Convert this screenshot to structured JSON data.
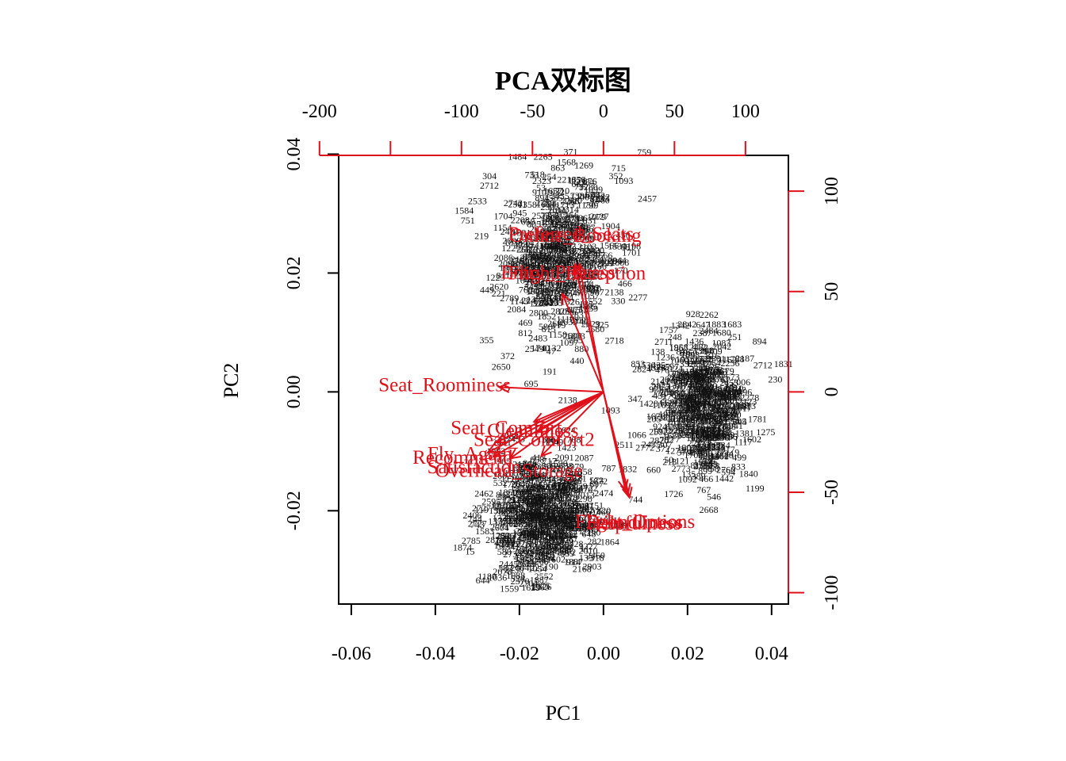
{
  "chart_data": {
    "type": "scatter",
    "subtype": "pca-biplot",
    "title": "PCA双标图",
    "xlabel": "PC1",
    "ylabel": "PC2",
    "xlim": [
      -0.063,
      0.044
    ],
    "ylim": [
      -0.0357,
      0.0398
    ],
    "x_ticks": [
      "-0.06",
      "-0.04",
      "-0.02",
      "0.00",
      "0.02",
      "0.04"
    ],
    "x_tick_values": [
      -0.06,
      -0.04,
      -0.02,
      0.0,
      0.02,
      0.04
    ],
    "y_ticks": [
      "-0.02",
      "0.00",
      "0.02",
      "0.04"
    ],
    "y_tick_values": [
      -0.02,
      0.0,
      0.02,
      0.04
    ],
    "top_ticks": [
      "-200",
      "-100",
      "-50",
      "0",
      "50",
      "100"
    ],
    "top_tick_values": [
      -200,
      -150,
      -100,
      -50,
      0,
      50,
      100
    ],
    "top_tick_labeled": [
      -200,
      -100,
      -50,
      0,
      50,
      100
    ],
    "right_ticks": [
      "-100",
      "-50",
      "0",
      "50",
      "100"
    ],
    "right_tick_values": [
      -100,
      -50,
      0,
      50,
      100
    ],
    "loading_scale": 2960,
    "arrow_color": "#e0101a",
    "point_color": "#000000",
    "clusters": [
      {
        "cx": -0.0105,
        "cy": 0.0225,
        "sx": 0.0065,
        "sy": 0.0065,
        "n": 380
      },
      {
        "cx": 0.0235,
        "cy": -0.003,
        "sx": 0.0055,
        "sy": 0.0058,
        "n": 420
      },
      {
        "cx": -0.0145,
        "cy": -0.0215,
        "sx": 0.0065,
        "sy": 0.005,
        "n": 460
      }
    ],
    "labeled_points": [
      {
        "label": "371",
        "x": -0.0078,
        "y": 0.0399
      },
      {
        "label": "759",
        "x": 0.0097,
        "y": 0.0398
      },
      {
        "label": "715",
        "x": 0.0036,
        "y": 0.0371
      },
      {
        "label": "751",
        "x": -0.0323,
        "y": 0.0283
      },
      {
        "label": "355",
        "x": -0.0278,
        "y": 0.0082
      },
      {
        "label": "372",
        "x": -0.0228,
        "y": 0.0055
      },
      {
        "label": "47",
        "x": -0.0125,
        "y": 0.0063
      },
      {
        "label": "191",
        "x": -0.0128,
        "y": 0.0029
      },
      {
        "label": "440",
        "x": -0.0063,
        "y": 0.0047
      },
      {
        "label": "1726",
        "x": 0.0167,
        "y": -0.0177
      },
      {
        "label": "1840",
        "x": 0.0345,
        "y": -0.0143
      },
      {
        "label": "1275",
        "x": 0.0386,
        "y": -0.0073
      },
      {
        "label": "2168",
        "x": -0.0051,
        "y": -0.0303
      },
      {
        "label": "2326",
        "x": -0.0146,
        "y": -0.0333
      },
      {
        "label": "2903",
        "x": -0.0027,
        "y": -0.0299
      },
      {
        "label": "466",
        "x": 0.0051,
        "y": 0.0177
      },
      {
        "label": "330",
        "x": 0.0035,
        "y": 0.0148
      },
      {
        "label": "325",
        "x": -0.0004,
        "y": 0.0108
      },
      {
        "label": "2138",
        "x": -0.0085,
        "y": -0.0019
      },
      {
        "label": "1093",
        "x": 0.0017,
        "y": -0.0036
      }
    ],
    "arrows": [
      {
        "name": "Preferred_Seats",
        "x": -0.0068,
        "y": 0.0215,
        "lx": -0.0077,
        "ly": 0.0263
      },
      {
        "name": "Online_Booking",
        "x": -0.0065,
        "y": 0.0205,
        "lx": -0.0067,
        "ly": 0.026
      },
      {
        "name": "Flight_Reception",
        "x": -0.0058,
        "y": 0.0215,
        "lx": -0.0063,
        "ly": 0.0197
      },
      {
        "name": "Entry_Process",
        "x": -0.0098,
        "y": 0.0165,
        "lx": -0.0108,
        "ly": 0.0198
      },
      {
        "name": "Seat_Roominess",
        "x": -0.0248,
        "y": 0.0008,
        "lx": -0.0378,
        "ly": 0.0009
      },
      {
        "name": "Seat_Comfort",
        "x": -0.0165,
        "y": -0.005,
        "lx": -0.0231,
        "ly": -0.0063
      },
      {
        "name": "Cleanliness",
        "x": -0.0255,
        "y": -0.0085,
        "lx": -0.0168,
        "ly": -0.0068
      },
      {
        "name": "Seat_Comfort2",
        "x": -0.0158,
        "y": -0.0068,
        "lx": -0.0165,
        "ly": -0.0083
      },
      {
        "name": "Fly_Again",
        "x": -0.0275,
        "y": -0.0102,
        "lx": -0.0318,
        "ly": -0.0107
      },
      {
        "name": "Recommend",
        "x": -0.0262,
        "y": -0.0109,
        "lx": -0.0335,
        "ly": -0.0113
      },
      {
        "name": "Satisfaction",
        "x": -0.0222,
        "y": -0.0112,
        "lx": -0.0308,
        "ly": -0.0129
      },
      {
        "name": "Overhead_Storage",
        "x": -0.0148,
        "y": -0.0108,
        "lx": -0.0225,
        "ly": -0.0135
      },
      {
        "name": "Friendliness",
        "x": 0.0058,
        "y": -0.0172,
        "lx": 0.0074,
        "ly": -0.0222
      },
      {
        "name": "Helpfulness",
        "x": 0.0062,
        "y": -0.0178,
        "lx": 0.0072,
        "ly": -0.0224
      },
      {
        "name": "Flight_Options",
        "x": 0.0052,
        "y": -0.0165,
        "lx": 0.0075,
        "ly": -0.0221
      }
    ]
  }
}
